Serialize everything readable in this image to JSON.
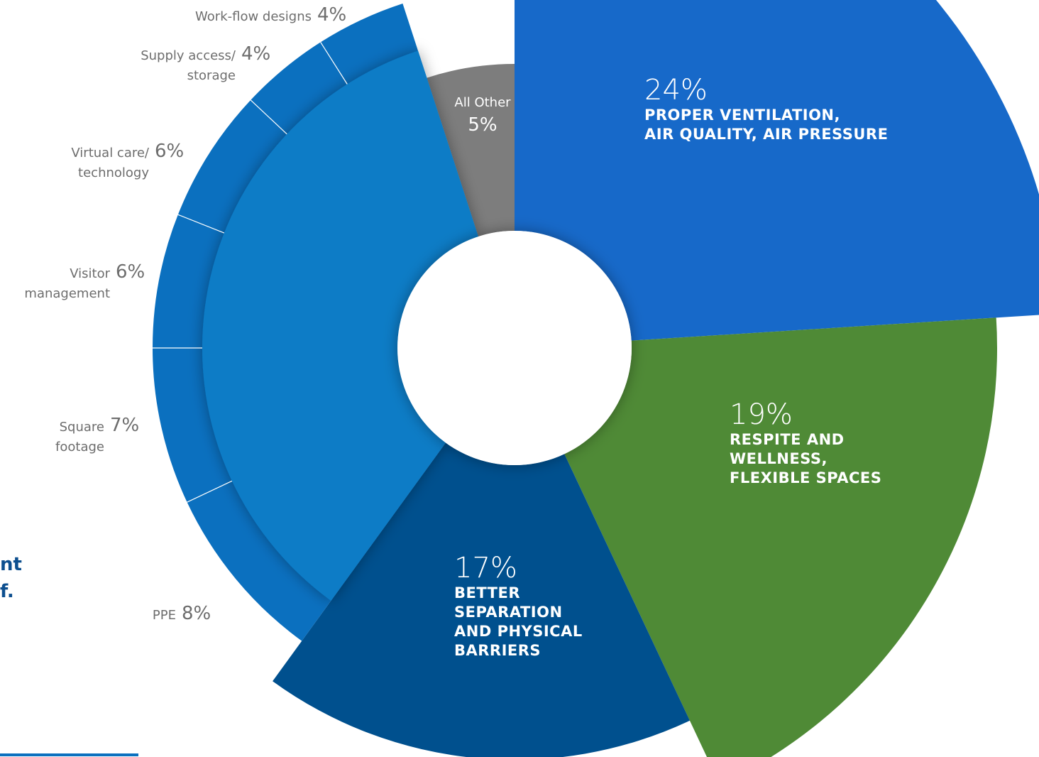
{
  "chart_data": {
    "type": "pie",
    "categories": [
      "PROPER VENTILATION,\nAIR QUALITY, AIR PRESSURE",
      "RESPITE AND\nWELLNESS,\nFLEXIBLE  SPACES",
      "BETTER\nSEPARATION\nAND PHYSICAL\nBARRIERS",
      "PPE",
      "Square\nfootage",
      "Visitor\nmanagement",
      "Virtual care/\ntechnology",
      "Supply access/\nstorage",
      "Work-flow designs",
      "All Other"
    ],
    "values": [
      24,
      19,
      17,
      8,
      7,
      6,
      6,
      4,
      4,
      5
    ],
    "value_labels": [
      "24%",
      "19%",
      "17%",
      "8%",
      "7%",
      "6%",
      "6%",
      "4%",
      "4%",
      "5%"
    ],
    "colors": [
      "#1769c9",
      "#4f8a36",
      "#00508e",
      "#0b70bf",
      "#0b70bf",
      "#0b70bf",
      "#0b70bf",
      "#0b70bf",
      "#0b70bf",
      "#7d7d7d"
    ]
  },
  "side_text": [
    "nt",
    "f."
  ]
}
